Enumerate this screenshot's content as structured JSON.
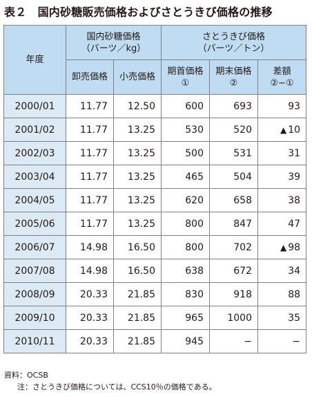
{
  "title": "表２　国内砂糖販売価格およびさとうきび価格の推移",
  "table": {
    "col_year": "年度",
    "group1": {
      "line1": "国内砂糖価格",
      "line2": "（バーツ／kg）"
    },
    "group2": {
      "line1": "さとうきび価格",
      "line2": "（バーツ／トン）"
    },
    "sub": {
      "wholesale": "卸売価格",
      "retail": "小売価格",
      "begin_line1": "期首価格",
      "begin_line2": "①",
      "end_line1": "期末価格",
      "end_line2": "②",
      "diff_line1": "差額",
      "diff_line2": "②−①"
    },
    "rows": [
      {
        "year": "2000/01",
        "wholesale": "11.77",
        "retail": "12.50",
        "begin": "600",
        "end": "693",
        "diff": "93",
        "neg": ""
      },
      {
        "year": "2001/02",
        "wholesale": "11.77",
        "retail": "13.25",
        "begin": "530",
        "end": "520",
        "diff": "10",
        "neg": "▲"
      },
      {
        "year": "2002/03",
        "wholesale": "11.77",
        "retail": "13.25",
        "begin": "500",
        "end": "531",
        "diff": "31",
        "neg": ""
      },
      {
        "year": "2003/04",
        "wholesale": "11.77",
        "retail": "13.25",
        "begin": "465",
        "end": "504",
        "diff": "39",
        "neg": ""
      },
      {
        "year": "2004/05",
        "wholesale": "11.77",
        "retail": "13.25",
        "begin": "620",
        "end": "658",
        "diff": "38",
        "neg": ""
      },
      {
        "year": "2005/06",
        "wholesale": "11.77",
        "retail": "13.25",
        "begin": "800",
        "end": "847",
        "diff": "47",
        "neg": ""
      },
      {
        "year": "2006/07",
        "wholesale": "14.98",
        "retail": "16.50",
        "begin": "800",
        "end": "702",
        "diff": "98",
        "neg": "▲"
      },
      {
        "year": "2007/08",
        "wholesale": "14.98",
        "retail": "16.50",
        "begin": "638",
        "end": "672",
        "diff": "34",
        "neg": ""
      },
      {
        "year": "2008/09",
        "wholesale": "20.33",
        "retail": "21.85",
        "begin": "830",
        "end": "918",
        "diff": "88",
        "neg": ""
      },
      {
        "year": "2009/10",
        "wholesale": "20.33",
        "retail": "21.85",
        "begin": "965",
        "end": "1000",
        "diff": "35",
        "neg": ""
      },
      {
        "year": "2010/11",
        "wholesale": "20.33",
        "retail": "21.85",
        "begin": "945",
        "end": "−",
        "diff": "−",
        "neg": ""
      }
    ]
  },
  "notes": {
    "source": "資料：OCSB",
    "note": "注：さとうきび価格については、CCS10％の価格である。"
  }
}
